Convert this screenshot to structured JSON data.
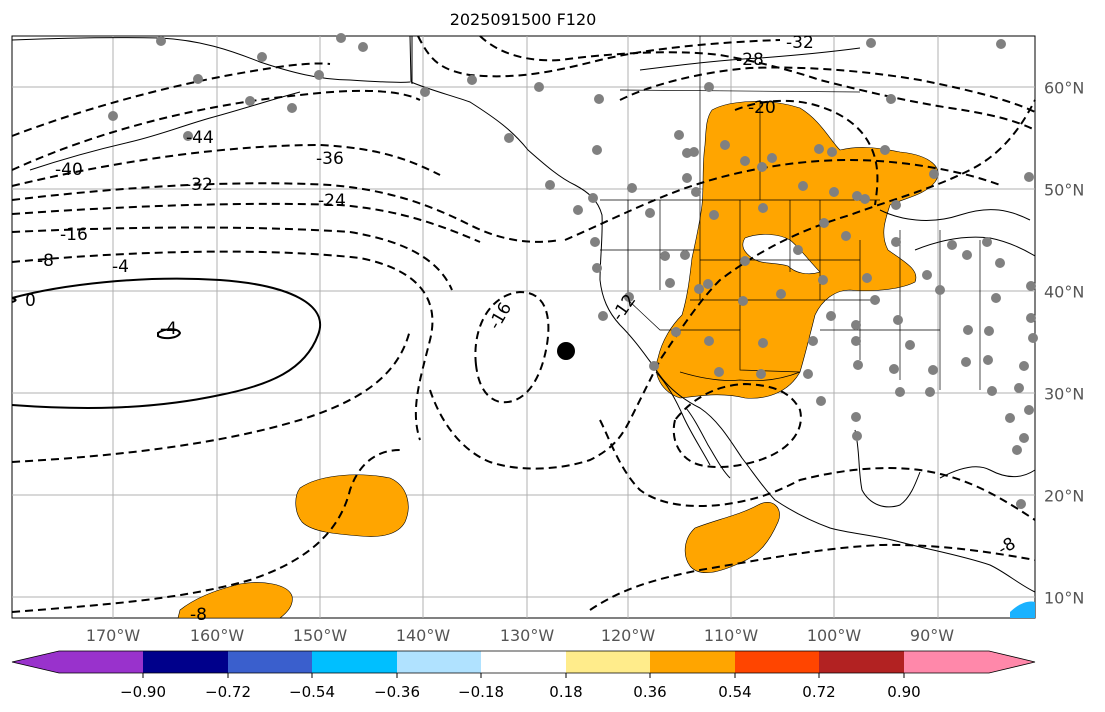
{
  "title": "2025091500 F120",
  "colors": {
    "ocean": "#ffffff",
    "positive_fill": "#ffa500",
    "negative_fill": "#1ab2ff",
    "station": "#808080",
    "marker": "#000000",
    "grid": "#b0b0b0"
  },
  "longitude_labels": [
    "170°W",
    "160°W",
    "150°W",
    "140°W",
    "130°W",
    "120°W",
    "110°W",
    "100°W",
    "90°W"
  ],
  "latitude_labels": [
    "60°N",
    "50°N",
    "40°N",
    "30°N",
    "20°N",
    "10°N"
  ],
  "contour_labels": [
    "-32",
    "-28",
    "-20",
    "-44",
    "-40",
    "-36",
    "-32",
    "-24",
    "-16",
    "-8",
    "-4",
    "0",
    "-4",
    "-16",
    "-12",
    "-8",
    "-8"
  ],
  "colorbar": {
    "colors": [
      "#9932cc",
      "#00008b",
      "#3a5fcd",
      "#00bfff",
      "#b0e2ff",
      "#ffffff",
      "#ffec8b",
      "#ffa500",
      "#ff4500",
      "#b22222",
      "#ff88aa"
    ],
    "ticks": [
      "−0.90",
      "−0.72",
      "−0.54",
      "−0.36",
      "−0.18",
      "0.18",
      "0.36",
      "0.54",
      "0.72",
      "0.90"
    ]
  }
}
